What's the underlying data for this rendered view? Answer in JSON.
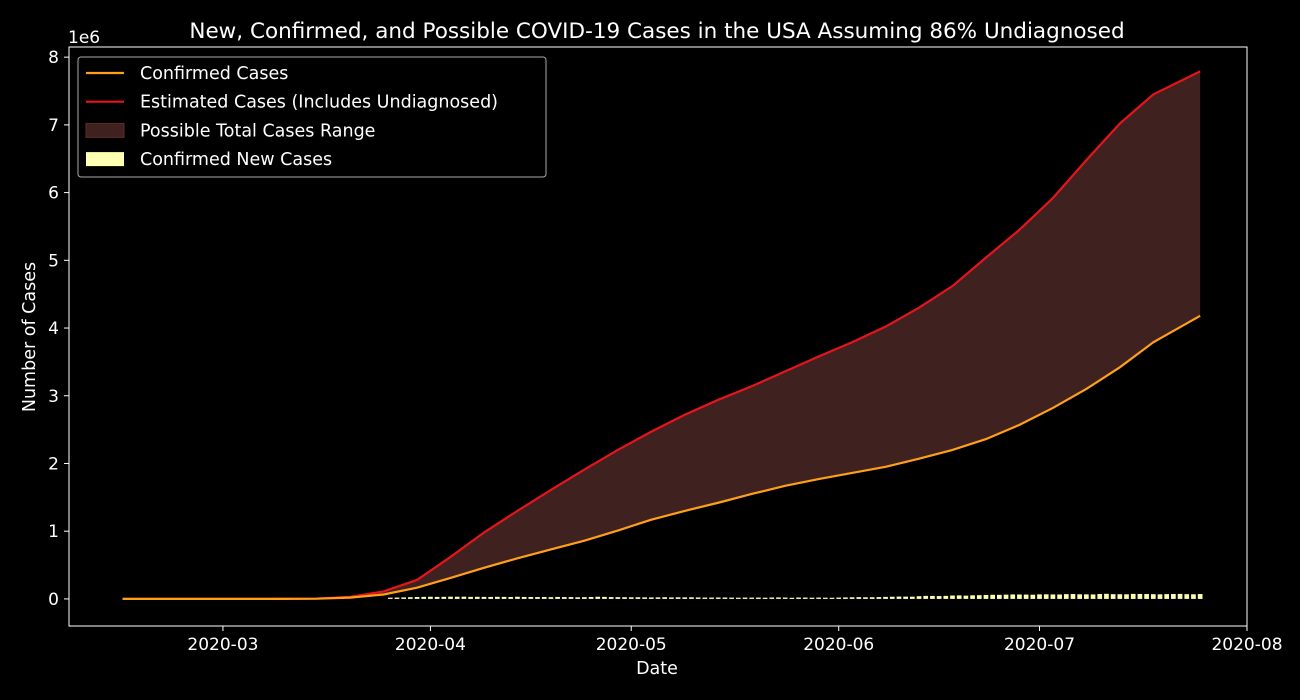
{
  "chart_data": {
    "type": "line",
    "title": "New, Confirmed, and Possible COVID-19 Cases in the USA Assuming 86% Undiagnosed",
    "xlabel": "Date",
    "ylabel": "Number of Cases",
    "y_offset_label": "1e6",
    "ylim": [
      -0.4,
      8.15
    ],
    "xlim": [
      "2020-02-07",
      "2020-08-01"
    ],
    "yticks": [
      0,
      1,
      2,
      3,
      4,
      5,
      6,
      7,
      8
    ],
    "xticks": [
      "2020-03",
      "2020-04",
      "2020-05",
      "2020-06",
      "2020-07",
      "2020-08"
    ],
    "grid": false,
    "legend_position": "top-left",
    "legend": [
      {
        "label": "Confirmed Cases",
        "kind": "line",
        "color": "#ff9f1c"
      },
      {
        "label": "Estimated Cases (Includes Undiagnosed)",
        "kind": "line",
        "color": "#e8141c"
      },
      {
        "label": "Possible Total Cases Range",
        "kind": "fill",
        "color": "#3f2220"
      },
      {
        "label": "Confirmed New Cases",
        "kind": "bar",
        "color": "#ffffb3"
      }
    ],
    "x": [
      "2020-02-15",
      "2020-03-01",
      "2020-03-10",
      "2020-03-15",
      "2020-03-20",
      "2020-03-25",
      "2020-03-30",
      "2020-04-04",
      "2020-04-09",
      "2020-04-14",
      "2020-04-19",
      "2020-04-24",
      "2020-04-29",
      "2020-05-04",
      "2020-05-09",
      "2020-05-14",
      "2020-05-19",
      "2020-05-24",
      "2020-05-29",
      "2020-06-03",
      "2020-06-08",
      "2020-06-13",
      "2020-06-18",
      "2020-06-23",
      "2020-06-28",
      "2020-07-03",
      "2020-07-08",
      "2020-07-13",
      "2020-07-18",
      "2020-07-25"
    ],
    "series": [
      {
        "name": "Confirmed Cases",
        "color": "#ff9f1c",
        "values": [
          0,
          0,
          0.001,
          0.003,
          0.019,
          0.065,
          0.165,
          0.31,
          0.46,
          0.6,
          0.73,
          0.86,
          1.01,
          1.17,
          1.3,
          1.42,
          1.55,
          1.67,
          1.77,
          1.86,
          1.95,
          2.07,
          2.2,
          2.36,
          2.57,
          2.82,
          3.1,
          3.42,
          3.79,
          4.18
        ]
      },
      {
        "name": "Estimated Cases (Includes Undiagnosed)",
        "color": "#e8141c",
        "values": [
          0,
          0,
          0.002,
          0.005,
          0.03,
          0.11,
          0.28,
          0.62,
          0.98,
          1.3,
          1.61,
          1.91,
          2.2,
          2.47,
          2.72,
          2.94,
          3.14,
          3.36,
          3.58,
          3.79,
          4.02,
          4.3,
          4.62,
          5.04,
          5.45,
          5.92,
          6.48,
          7.02,
          7.45,
          7.79
        ]
      }
    ],
    "new_cases": {
      "name": "Confirmed New Cases",
      "color": "#ffffb3",
      "start": "2020-03-26",
      "end": "2020-07-25",
      "values": [
        18,
        20,
        22,
        25,
        28,
        30,
        32,
        30,
        31,
        33,
        32,
        33,
        30,
        31,
        30,
        29,
        31,
        30,
        28,
        32,
        29,
        28,
        27,
        28,
        26,
        29,
        27,
        27,
        24,
        26,
        28,
        32,
        30,
        27,
        26,
        25,
        24,
        25,
        23,
        22,
        23,
        25,
        22,
        24,
        23,
        24,
        22,
        20,
        20,
        21,
        21,
        19,
        18,
        20,
        19,
        20,
        18,
        21,
        22,
        20,
        17,
        21,
        20,
        18,
        20,
        18,
        17,
        20,
        22,
        24,
        26,
        24,
        25,
        27,
        30,
        32,
        35,
        34,
        33,
        40,
        45,
        44,
        42,
        45,
        50,
        52,
        48,
        53,
        55,
        58,
        61,
        60,
        63,
        66,
        65,
        64,
        62,
        67,
        68,
        66,
        65,
        70,
        72,
        68,
        67,
        66,
        72,
        75,
        70,
        69,
        68,
        74,
        73,
        72,
        70,
        68,
        71,
        72,
        74,
        70,
        68,
        72
      ],
      "unit": "thousands"
    }
  }
}
